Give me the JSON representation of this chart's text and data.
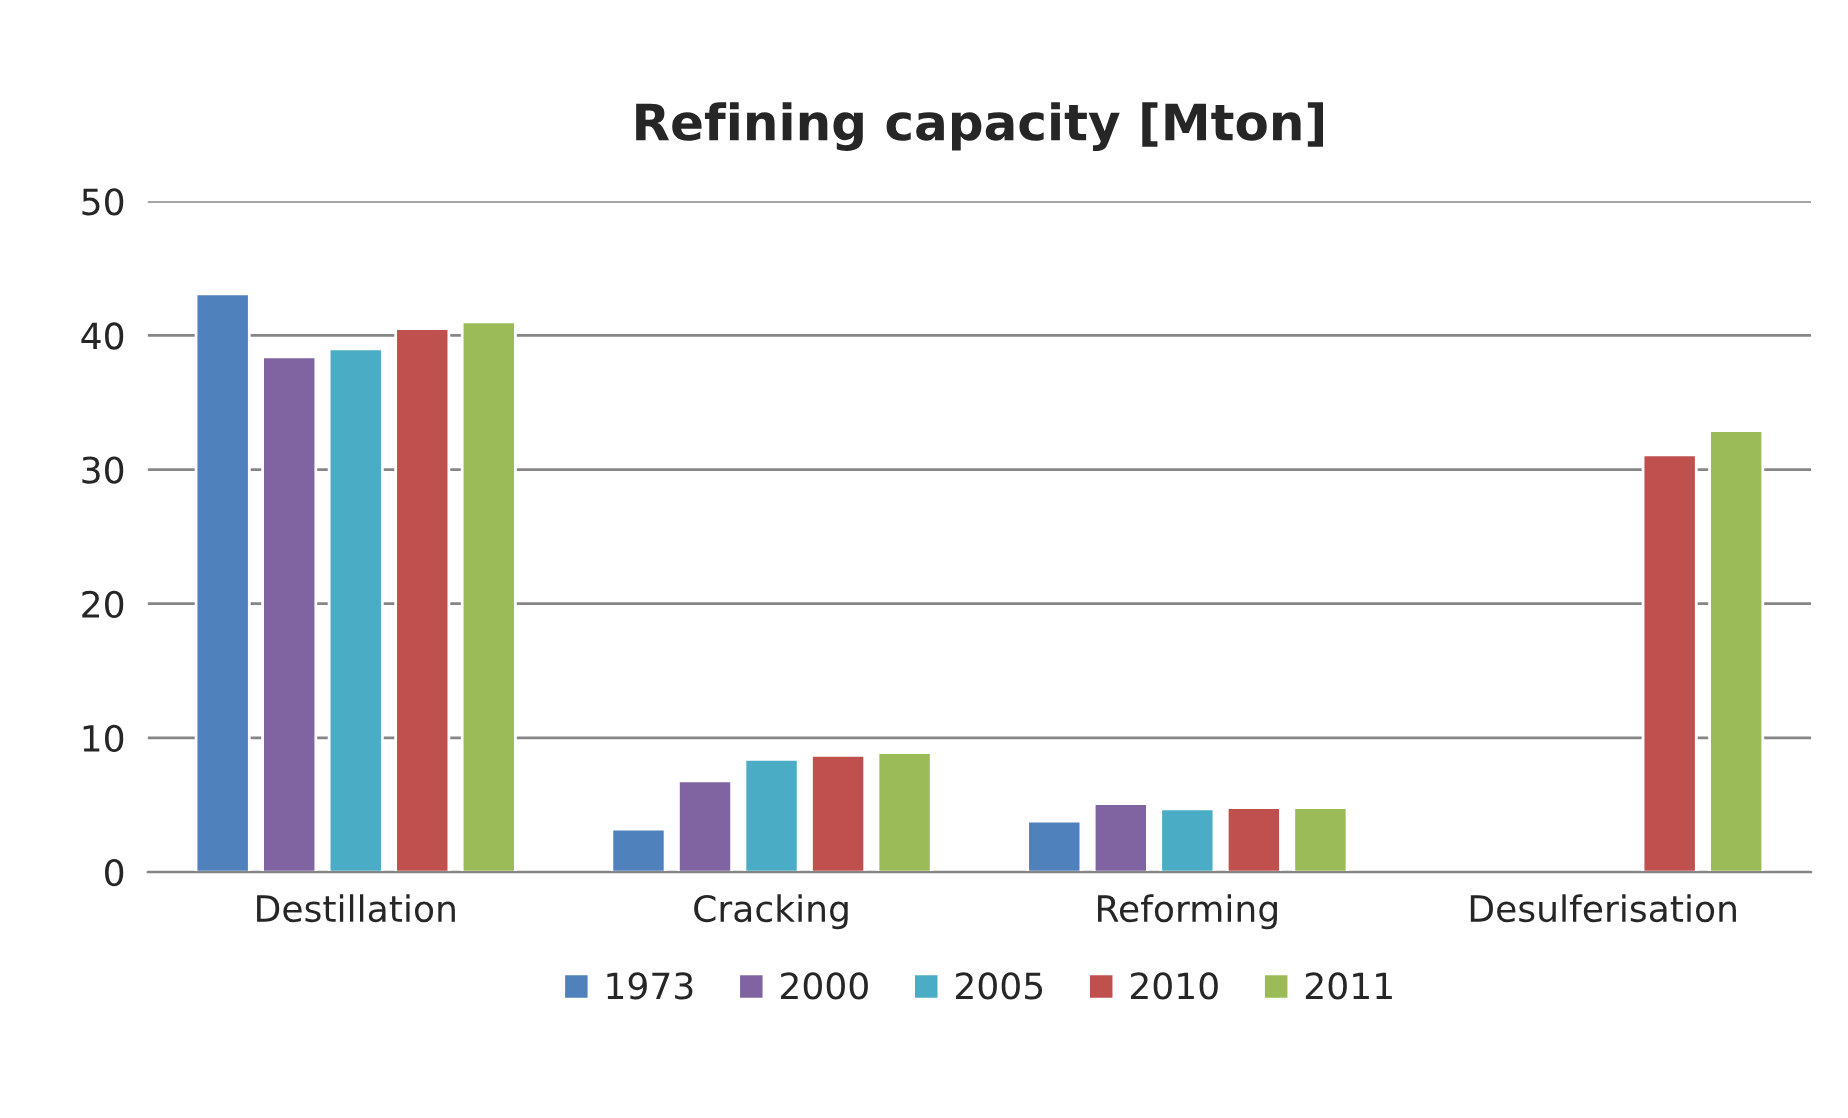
{
  "chart_data": {
    "type": "bar",
    "title": "Refining capacity [Mton]",
    "categories": [
      "Destillation",
      "Cracking",
      "Reforming",
      "Desulferisation"
    ],
    "series": [
      {
        "name": "1973",
        "color": "#4f81bd",
        "values": [
          43.1,
          3.2,
          3.8,
          null
        ]
      },
      {
        "name": "2000",
        "color": "#8064a2",
        "values": [
          38.4,
          6.8,
          5.1,
          null
        ]
      },
      {
        "name": "2005",
        "color": "#4bacc6",
        "values": [
          39.0,
          8.4,
          4.7,
          null
        ]
      },
      {
        "name": "2010",
        "color": "#c0504d",
        "values": [
          40.5,
          8.7,
          4.8,
          31.1
        ]
      },
      {
        "name": "2011",
        "color": "#9bbb59",
        "values": [
          41.0,
          8.9,
          4.8,
          32.9
        ]
      }
    ],
    "ylim": [
      0,
      50
    ],
    "yticks": [
      0,
      10,
      20,
      30,
      40,
      50
    ],
    "grid": "y",
    "legend": "bottom"
  }
}
